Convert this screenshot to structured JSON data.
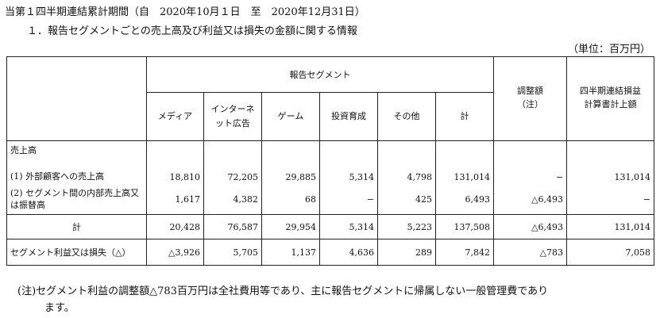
{
  "title": "当第１四半期連結累計期間（自　2020年10月１日　至　2020年12月31日）",
  "subtitle": "１．報告セグメントごとの売上高及び利益又は損失の金額に関する情報",
  "unit": "（単位：百万円）",
  "table": {
    "group_header": "報告セグメント",
    "adjust_header": [
      "調整額",
      "（注）"
    ],
    "consolidated_header": [
      "四半期連結損益",
      "計算書計上額"
    ],
    "segment_headers": [
      {
        "label": "メディア"
      },
      {
        "line1": "インターネ",
        "line2": "ット広告"
      },
      {
        "label": "ゲーム"
      },
      {
        "label": "投資育成"
      },
      {
        "label": "その他"
      },
      {
        "label": "計"
      }
    ],
    "sales_label": "売上高",
    "rows": [
      {
        "label": "(1) 外部顧客への売上高",
        "values": [
          "18,810",
          "72,205",
          "29,885",
          "5,314",
          "4,798",
          "131,014",
          "−",
          "131,014"
        ]
      },
      {
        "label": "(2) セグメント間の内部売上高又は振替高",
        "values": [
          "1,617",
          "4,382",
          "68",
          "−",
          "425",
          "6,493",
          "△6,493",
          "−"
        ]
      },
      {
        "label": "計",
        "values": [
          "20,428",
          "76,587",
          "29,954",
          "5,314",
          "5,223",
          "137,508",
          "△6,493",
          "131,014"
        ]
      },
      {
        "label": "セグメント利益又は損失（△）",
        "values": [
          "△3,926",
          "5,705",
          "1,137",
          "4,636",
          "289",
          "7,842",
          "△783",
          "7,058"
        ]
      }
    ]
  },
  "note": {
    "line1": "(注)セグメント利益の調整額△783百万円は全社費用等であり、主に報告セグメントに帰属しない一般管理費であり",
    "line2": "ます。"
  }
}
